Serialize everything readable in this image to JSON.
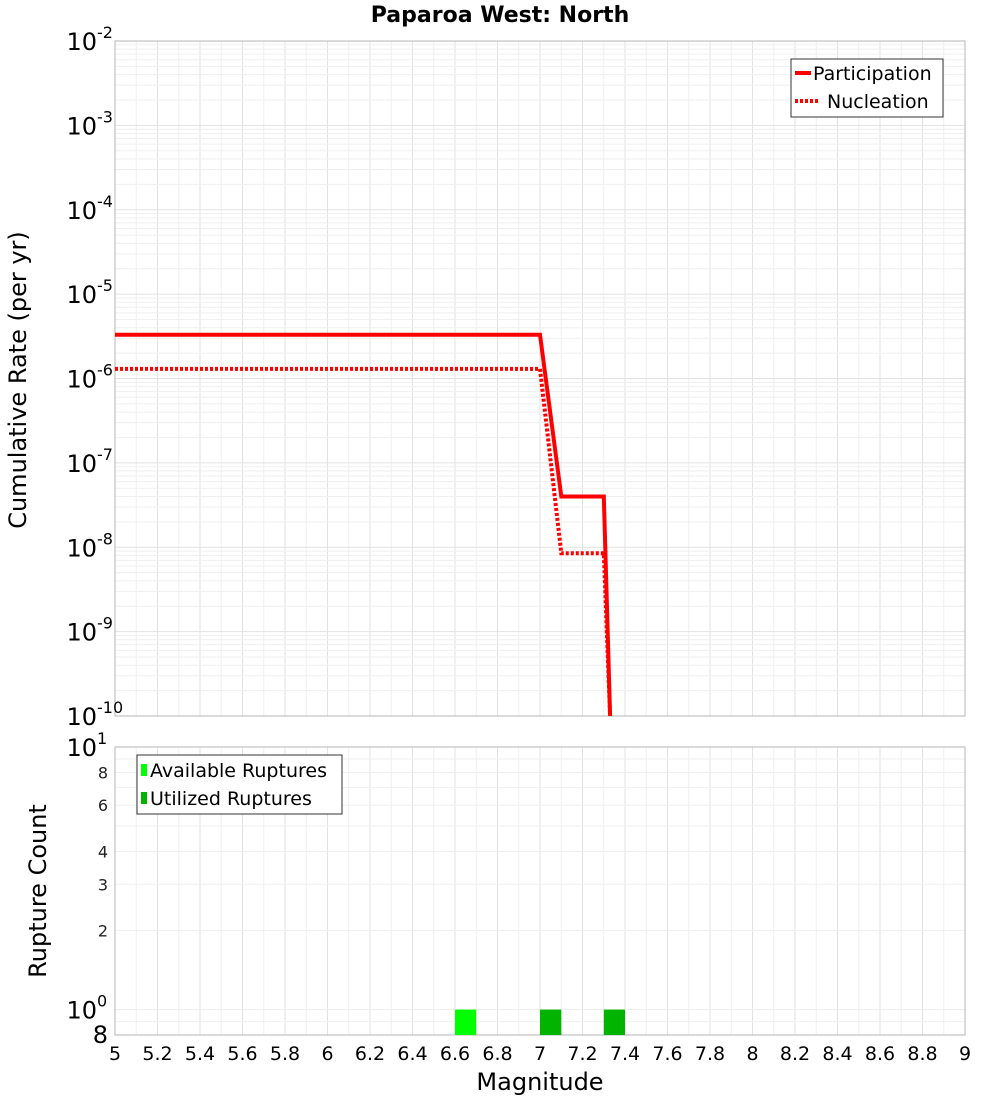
{
  "chart_data": [
    {
      "type": "line",
      "title": "Paparoa West: North",
      "xlabel": "",
      "ylabel": "Cumulative Rate (per yr)",
      "y_scale": "log",
      "xlim": [
        5,
        9
      ],
      "ylim": [
        1e-10,
        0.01
      ],
      "grid": true,
      "legend_position": "top-right",
      "series": [
        {
          "name": "Participation",
          "style": "solid",
          "color": "#ff0000",
          "x": [
            5.0,
            7.0,
            7.1,
            7.3,
            7.33
          ],
          "y": [
            3.3e-06,
            3.3e-06,
            4e-08,
            4e-08,
            1e-10
          ]
        },
        {
          "name": "Nucleation",
          "style": "dotted",
          "color": "#ff0000",
          "x": [
            5.0,
            7.0,
            7.1,
            7.3,
            7.33
          ],
          "y": [
            1.3e-06,
            1.3e-06,
            8.5e-09,
            8.5e-09,
            1e-10
          ]
        }
      ]
    },
    {
      "type": "bar",
      "title": "",
      "xlabel": "Magnitude",
      "ylabel": "Rupture Count",
      "y_scale": "log",
      "xlim": [
        5,
        9
      ],
      "ylim": [
        0.8,
        10
      ],
      "grid": true,
      "legend_position": "top-left",
      "bar_width": 0.1,
      "series": [
        {
          "name": "Available Ruptures",
          "color": "#00ff00",
          "x": [
            6.65
          ],
          "values": [
            1
          ]
        },
        {
          "name": "Utilized Ruptures",
          "color": "#00b400",
          "x": [
            7.05,
            7.35
          ],
          "values": [
            1,
            1
          ]
        }
      ]
    }
  ],
  "x_ticks": [
    "5",
    "5.2",
    "5.4",
    "5.6",
    "5.8",
    "6",
    "6.2",
    "6.4",
    "6.6",
    "6.8",
    "7",
    "7.2",
    "7.4",
    "7.6",
    "7.8",
    "8",
    "8.2",
    "8.4",
    "8.6",
    "8.8",
    "9"
  ],
  "top_y_ticks": [
    {
      "base": "10",
      "exp": "-2"
    },
    {
      "base": "10",
      "exp": "-3"
    },
    {
      "base": "10",
      "exp": "-4"
    },
    {
      "base": "10",
      "exp": "-5"
    },
    {
      "base": "10",
      "exp": "-6"
    },
    {
      "base": "10",
      "exp": "-7"
    },
    {
      "base": "10",
      "exp": "-8"
    },
    {
      "base": "10",
      "exp": "-9"
    },
    {
      "base": "10",
      "exp": "-10"
    }
  ],
  "bottom_y_ticks": {
    "decades": [
      {
        "base": "10",
        "exp": "1"
      },
      {
        "base": "10",
        "exp": "0"
      }
    ],
    "minor_labels": [
      "8",
      "6",
      "4",
      "3",
      "2"
    ],
    "bottom_label": "8"
  },
  "colors": {
    "line": "#ff0000",
    "available": "#00ff00",
    "utilized": "#00b400"
  }
}
